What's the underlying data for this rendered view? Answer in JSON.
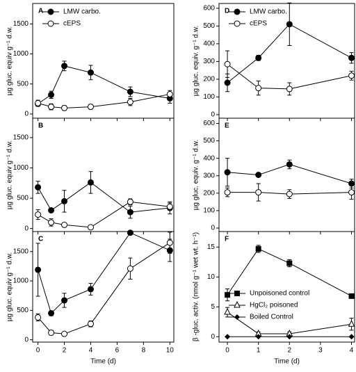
{
  "chart_data": [
    {
      "type": "line",
      "title": "A",
      "ylabel": "µg gluc. equiv g⁻¹ d.w.",
      "legend": "upper left",
      "show_xtick_labels": false,
      "x": [
        0,
        1,
        2,
        4,
        7,
        10
      ],
      "xlim": [
        -0.4,
        10.3
      ],
      "xticks": [
        0,
        2,
        4,
        6,
        8,
        10
      ],
      "ylim": [
        -70,
        1840
      ],
      "yticks": [
        0,
        500,
        1000,
        1500
      ],
      "series": [
        {
          "name": "LMW carbo.",
          "color": "#000000",
          "marker": "circle-filled",
          "values": [
            170,
            320,
            800,
            690,
            370,
            260
          ],
          "errors": [
            40,
            60,
            80,
            120,
            80,
            80
          ]
        },
        {
          "name": "cEPS",
          "color": "#000000",
          "marker": "circle-open",
          "values": [
            180,
            120,
            100,
            120,
            200,
            330
          ],
          "errors": [
            50,
            50,
            40,
            40,
            60,
            60
          ]
        }
      ]
    },
    {
      "type": "line",
      "title": "B",
      "ylabel": "µg gluc. equiv g⁻¹ d.w.",
      "show_xtick_labels": false,
      "x": [
        0,
        1,
        2,
        4,
        7,
        10
      ],
      "xlim": [
        -0.4,
        10.3
      ],
      "xticks": [
        0,
        2,
        4,
        6,
        8,
        10
      ],
      "ylim": [
        -50,
        1820
      ],
      "yticks": [
        0,
        500,
        1000,
        1500
      ],
      "series": [
        {
          "color": "#000000",
          "marker": "circle-filled",
          "values": [
            680,
            300,
            450,
            760,
            270,
            340
          ],
          "errors": [
            100,
            30,
            180,
            180,
            100,
            100
          ]
        },
        {
          "color": "#000000",
          "marker": "circle-open",
          "values": [
            230,
            100,
            60,
            20,
            440,
            360
          ],
          "errors": [
            80,
            60,
            20,
            20,
            50,
            60
          ]
        }
      ]
    },
    {
      "type": "line",
      "title": "C",
      "ylabel": "µg gluc. equiv g⁻¹ d.w.",
      "xlabel": "Time (d)",
      "show_xtick_labels": true,
      "x": [
        0,
        1,
        2,
        4,
        7,
        10
      ],
      "xlim": [
        -0.4,
        10.3
      ],
      "xticks": [
        0,
        2,
        4,
        6,
        8,
        10
      ],
      "ylim": [
        -40,
        1840
      ],
      "yticks": [
        0,
        500,
        1000,
        1500
      ],
      "series": [
        {
          "color": "#000000",
          "marker": "circle-filled",
          "values": [
            1190,
            450,
            670,
            860,
            1820,
            1520
          ],
          "errors": [
            450,
            40,
            120,
            100,
            20,
            190
          ]
        },
        {
          "color": "#000000",
          "marker": "circle-open",
          "values": [
            380,
            120,
            100,
            270,
            1210,
            1650
          ],
          "errors": [
            60,
            40,
            20,
            50,
            180,
            180
          ]
        }
      ]
    },
    {
      "type": "line",
      "title": "D",
      "ylabel": "µg gluc. equiv. g⁻¹ d.w.",
      "legend": "upper left",
      "show_xtick_labels": false,
      "x": [
        0,
        1,
        2,
        4
      ],
      "xlim": [
        -0.27,
        4.1
      ],
      "xticks": [
        0,
        1,
        2,
        3,
        4
      ],
      "ylim": [
        -20,
        627
      ],
      "yticks": [
        0,
        100,
        200,
        300,
        400,
        500,
        600
      ],
      "series": [
        {
          "name": "LMW carbo.",
          "color": "#000000",
          "marker": "circle-filled",
          "values": [
            180,
            320,
            510,
            320
          ],
          "errors": [
            50,
            15,
            120,
            30
          ]
        },
        {
          "name": "cEPS",
          "color": "#000000",
          "marker": "circle-open",
          "values": [
            285,
            150,
            145,
            220
          ],
          "errors": [
            75,
            40,
            35,
            25
          ]
        }
      ]
    },
    {
      "type": "line",
      "title": "E",
      "ylabel": "µg gluc. equiv. g⁻¹ d.w.",
      "show_xtick_labels": false,
      "x": [
        0,
        1,
        2,
        4
      ],
      "xlim": [
        -0.27,
        4.1
      ],
      "xticks": [
        0,
        1,
        2,
        3,
        4
      ],
      "ylim": [
        -20,
        630
      ],
      "yticks": [
        0,
        100,
        200,
        300,
        400,
        500,
        600
      ],
      "series": [
        {
          "color": "#000000",
          "marker": "circle-filled",
          "values": [
            320,
            305,
            365,
            255
          ],
          "errors": [
            80,
            10,
            25,
            25
          ]
        },
        {
          "color": "#000000",
          "marker": "circle-open",
          "values": [
            205,
            205,
            195,
            205
          ],
          "errors": [
            25,
            50,
            25,
            40
          ]
        }
      ]
    },
    {
      "type": "line",
      "title": "F",
      "ylabel": "β -gluc. activ. (nmol g⁻¹ wet wt. h⁻¹)",
      "xlabel": "Time (d)",
      "legend": "lower left",
      "show_xtick_labels": true,
      "x": [
        0,
        1,
        2,
        4
      ],
      "xlim": [
        -0.27,
        4.1
      ],
      "xticks": [
        0,
        1,
        2,
        3,
        4
      ],
      "ylim": [
        -0.9,
        17.6
      ],
      "yticks": [
        0,
        5,
        10,
        15
      ],
      "series": [
        {
          "name": "Unpoisoned control",
          "color": "#000000",
          "marker": "square",
          "values": [
            7,
            14.7,
            12.3,
            6.8
          ],
          "errors": [
            1,
            0.6,
            0.6,
            0.2
          ]
        },
        {
          "name": "HgCl₂  poisoned",
          "color": "#000000",
          "marker": "triangle-open",
          "values": [
            4.1,
            0.5,
            0.5,
            2.1
          ],
          "errors": [
            0.8,
            0.3,
            0.3,
            1.0
          ]
        },
        {
          "name": "Boiled Control",
          "color": "#000000",
          "marker": "diamond",
          "values": [
            0,
            0,
            0,
            0
          ]
        }
      ]
    }
  ]
}
